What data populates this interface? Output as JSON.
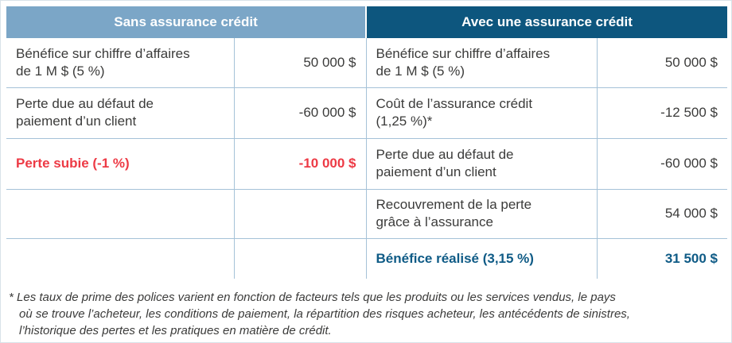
{
  "colors": {
    "header_left_bg": "#7ba6c7",
    "header_right_bg": "#0d567e",
    "header_text": "#ffffff",
    "body_text": "#3b3b3a",
    "loss_text": "#ed3a45",
    "gain_text": "#0f5b86",
    "grid_line": "#a5c2d8"
  },
  "table": {
    "left": {
      "header": "Sans assurance crédit",
      "rows": [
        {
          "label": "Bénéfice sur chiffre d’affaires de 1 M $ (5 %)",
          "value": "50 000 $"
        },
        {
          "label": "Perte due au défaut de paiement d’un client",
          "value": "-60 000 $"
        },
        {
          "label": "Perte subie (-1 %)",
          "value": "-10 000 $"
        },
        {
          "label": "",
          "value": ""
        },
        {
          "label": "",
          "value": ""
        }
      ]
    },
    "right": {
      "header": "Avec une assurance crédit",
      "rows": [
        {
          "label": "Bénéfice sur chiffre d’affaires de 1 M $ (5 %)",
          "value": "50 000 $"
        },
        {
          "label": "Coût de l’assurance crédit (1,25 %)*",
          "value": "-12 500 $"
        },
        {
          "label": "Perte due au défaut de paiement d’un client",
          "value": "-60 000 $"
        },
        {
          "label": "Recouvrement de la perte grâce à l’assurance",
          "value": "54 000 $"
        },
        {
          "label": "Bénéfice réalisé (3,15 %)",
          "value": "31 500 $"
        }
      ]
    }
  },
  "footnote": {
    "lines": [
      "* Les taux de prime des polices varient en fonction de facteurs tels que les produits ou les services vendus, le pays",
      "où se trouve l’acheteur, les conditions de paiement, la répartition des risques acheteur, les antécédents de sinistres,",
      "l’historique des pertes et les pratiques en matière de crédit."
    ]
  }
}
